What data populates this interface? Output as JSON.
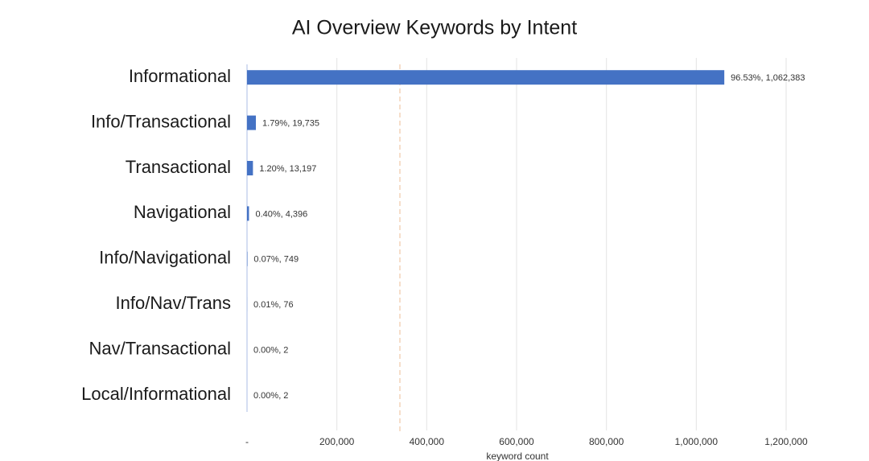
{
  "chart_data": {
    "type": "bar",
    "orientation": "horizontal",
    "title": "AI Overview Keywords by Intent",
    "x_label": "keyword count",
    "categories": [
      "Informational",
      "Info/Transactional",
      "Transactional",
      "Navigational",
      "Info/Navigational",
      "Info/Nav/Trans",
      "Nav/Transactional",
      "Local/Informational"
    ],
    "values": [
      1062383,
      19735,
      13197,
      4396,
      749,
      76,
      2,
      2
    ],
    "value_labels": [
      "96.53%, 1,062,383",
      "1.79%, 19,735",
      "1.20%, 13,197",
      "0.40%, 4,396",
      "0.07%, 749",
      "0.01%, 76",
      "0.00%, 2",
      "0.00%, 2"
    ],
    "color": "#4472c4",
    "xlim": [
      0,
      1200000
    ],
    "xticks": [
      {
        "value": 0,
        "label": "-"
      },
      {
        "value": 200000,
        "label": "200,000"
      },
      {
        "value": 400000,
        "label": "400,000"
      },
      {
        "value": 600000,
        "label": "600,000"
      },
      {
        "value": 800000,
        "label": "800,000"
      },
      {
        "value": 1000000,
        "label": "1,000,000"
      },
      {
        "value": 1200000,
        "label": "1,200,000"
      }
    ],
    "grid": true
  }
}
